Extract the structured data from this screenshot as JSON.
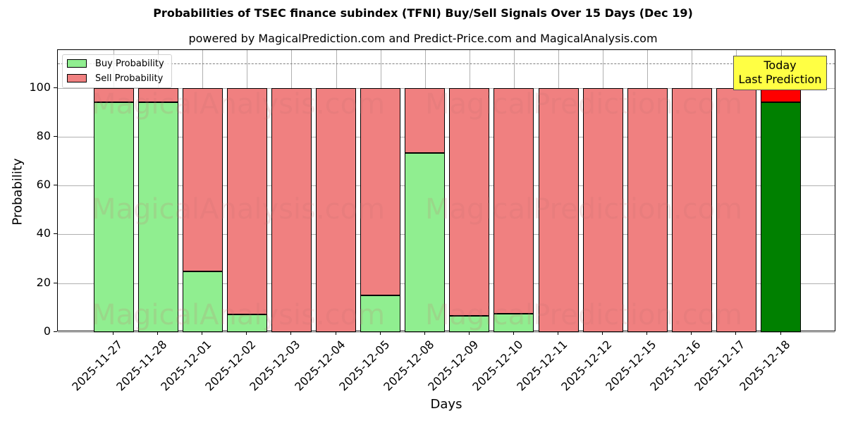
{
  "header": {
    "title": "Probabilities of TSEC finance subindex (TFNI) Buy/Sell Signals Over 15 Days (Dec 19)",
    "subtitle": "powered by MagicalPrediction.com and Predict-Price.com and MagicalAnalysis.com"
  },
  "axes": {
    "xlabel": "Days",
    "ylabel": "Probability",
    "yticks": [
      "0",
      "20",
      "40",
      "60",
      "80",
      "100"
    ]
  },
  "legend": {
    "buy": "Buy Probability",
    "sell": "Sell Probability"
  },
  "annotation": {
    "line1": "Today",
    "line2": "Last Prediction"
  },
  "watermarks": {
    "left": "MagicalAnalysis.com",
    "right": "MagicalPrediction.com"
  },
  "colors": {
    "buy": "#90ee90",
    "sell": "#f08080",
    "today_buy": "#008000",
    "today_sell": "#ff0000",
    "annotation_bg": "#ffff44"
  },
  "chart_data": {
    "type": "bar",
    "stacked": true,
    "title": "Probabilities of TSEC finance subindex (TFNI) Buy/Sell Signals Over 15 Days (Dec 19)",
    "subtitle": "powered by MagicalPrediction.com and Predict-Price.com and MagicalAnalysis.com",
    "xlabel": "Days",
    "ylabel": "Probability",
    "ylim": [
      0,
      115.5
    ],
    "yticks": [
      0,
      20,
      40,
      60,
      80,
      100
    ],
    "grid": true,
    "legend_position": "upper left",
    "reference_line": {
      "y": 110,
      "style": "dashed",
      "color": "#808080"
    },
    "categories": [
      "2025-11-27",
      "2025-11-28",
      "2025-12-01",
      "2025-12-02",
      "2025-12-03",
      "2025-12-04",
      "2025-12-05",
      "2025-12-08",
      "2025-12-09",
      "2025-12-10",
      "2025-12-11",
      "2025-12-12",
      "2025-12-15",
      "2025-12-16",
      "2025-12-17",
      "2025-12-18"
    ],
    "series": [
      {
        "name": "Buy Probability",
        "values": [
          94,
          94,
          24.8,
          7.1,
          0,
          0,
          14.9,
          73.2,
          6.7,
          7.5,
          0,
          0,
          0,
          0,
          0,
          94
        ]
      },
      {
        "name": "Sell Probability",
        "values": [
          6,
          6,
          75.2,
          92.9,
          100,
          100,
          85.1,
          26.8,
          93.3,
          92.5,
          100,
          100,
          100,
          100,
          100,
          6
        ]
      }
    ],
    "annotations": [
      {
        "text": "Today\nLast Prediction",
        "x": "2025-12-18",
        "y": 110
      }
    ]
  }
}
